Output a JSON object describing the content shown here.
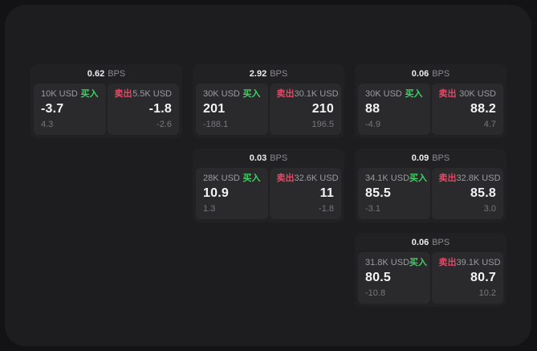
{
  "colors": {
    "page_bg": "#131315",
    "window_bg": "#1d1d1f",
    "card_bg": "#212124",
    "panel_bg": "#2a2a2d",
    "text_primary": "#f4f4f6",
    "text_secondary": "#9a9aa0",
    "text_dim": "#77777b",
    "buy_green": "#40d163",
    "sell_red": "#e04a66"
  },
  "labels": {
    "bps_unit": "BPS",
    "buy": "买入",
    "sell": "卖出"
  },
  "cards": [
    {
      "bps": "0.62",
      "buy": {
        "size": "10K USD",
        "price": "-3.7",
        "delta": "4.3"
      },
      "sell": {
        "size": "5.5K USD",
        "price": "-1.8",
        "delta": "-2.6"
      }
    },
    {
      "bps": "2.92",
      "buy": {
        "size": "30K USD",
        "price": "201",
        "delta": "-188.1"
      },
      "sell": {
        "size": "30.1K USD",
        "price": "210",
        "delta": "196.5"
      }
    },
    {
      "bps": "0.06",
      "buy": {
        "size": "30K USD",
        "price": "88",
        "delta": "-4.9"
      },
      "sell": {
        "size": "30K USD",
        "price": "88.2",
        "delta": "4.7"
      }
    },
    {
      "bps": "0.03",
      "buy": {
        "size": "28K USD",
        "price": "10.9",
        "delta": "1.3"
      },
      "sell": {
        "size": "32.6K USD",
        "price": "11",
        "delta": "-1.8"
      }
    },
    {
      "bps": "0.09",
      "buy": {
        "size": "34.1K USD",
        "price": "85.5",
        "delta": "-3.1"
      },
      "sell": {
        "size": "32.8K USD",
        "price": "85.8",
        "delta": "3.0"
      }
    },
    {
      "bps": "0.06",
      "buy": {
        "size": "31.8K USD",
        "price": "80.5",
        "delta": "-10.8"
      },
      "sell": {
        "size": "39.1K USD",
        "price": "80.7",
        "delta": "10.2"
      }
    }
  ]
}
